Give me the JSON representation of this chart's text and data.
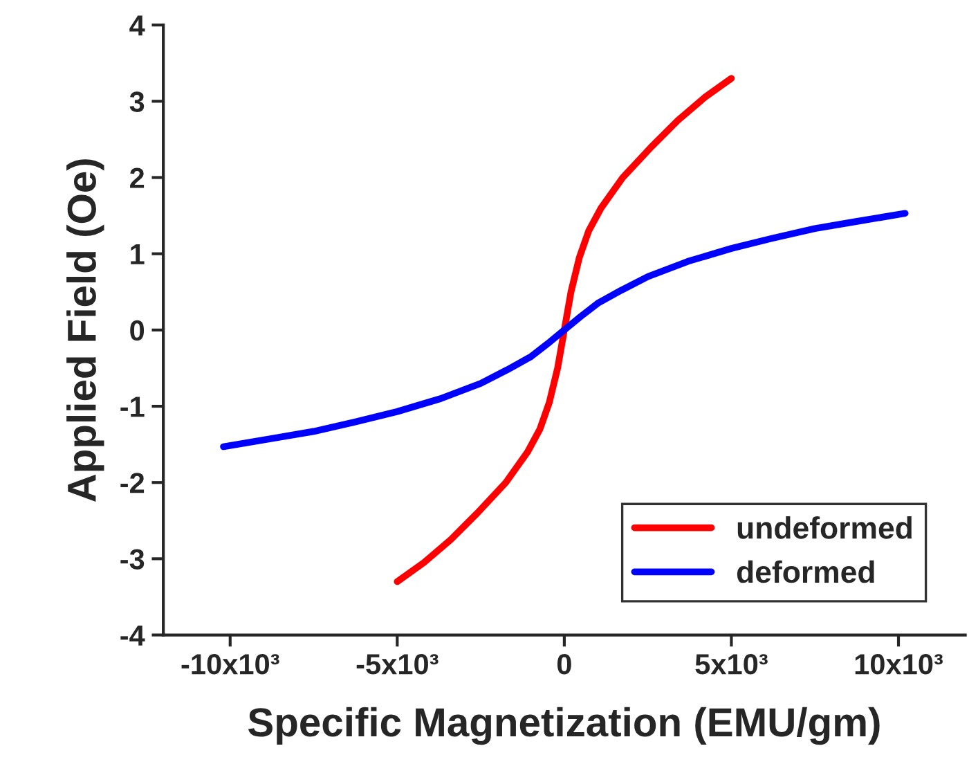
{
  "chart_data": {
    "type": "line",
    "xlabel": "Specific Magnetization (EMU/gm)",
    "ylabel": "Applied Field (Oe)",
    "xlim": [
      -12000,
      12000
    ],
    "ylim": [
      -4,
      4
    ],
    "xticks": [
      {
        "value": -10000,
        "label": "-10x10³"
      },
      {
        "value": -5000,
        "label": "-5x10³"
      },
      0,
      {
        "value": 5000,
        "label": "5x10³"
      },
      {
        "value": 10000,
        "label": "10x10³"
      }
    ],
    "yticks": [
      -4,
      -3,
      -2,
      -1,
      0,
      1,
      2,
      3,
      4
    ],
    "grid": false,
    "legend": "bottom right",
    "marker": "none",
    "line_style": "solid",
    "series": [
      {
        "name": "undeformed",
        "color": "#ff0000",
        "x": [
          -5000,
          -4200,
          -3400,
          -2600,
          -1750,
          -1100,
          -730,
          -450,
          -200,
          -80,
          0,
          80,
          200,
          450,
          730,
          1100,
          1750,
          2600,
          3400,
          4200,
          5000
        ],
        "values": [
          -3.3,
          -3.05,
          -2.75,
          -2.4,
          -2.0,
          -1.6,
          -1.3,
          -0.95,
          -0.5,
          -0.2,
          0,
          0.2,
          0.5,
          0.95,
          1.3,
          1.6,
          2.0,
          2.4,
          2.75,
          3.05,
          3.3
        ]
      },
      {
        "name": "deformed",
        "color": "#0000ff",
        "x": [
          -10200,
          -8700,
          -7500,
          -6200,
          -5000,
          -3700,
          -2500,
          -1700,
          -1000,
          -500,
          0,
          500,
          1000,
          1700,
          2500,
          3700,
          5000,
          6200,
          7500,
          8700,
          10200
        ],
        "values": [
          -1.53,
          -1.42,
          -1.33,
          -1.2,
          -1.07,
          -0.9,
          -0.7,
          -0.52,
          -0.35,
          -0.18,
          0,
          0.18,
          0.35,
          0.52,
          0.7,
          0.9,
          1.07,
          1.2,
          1.33,
          1.42,
          1.53
        ]
      }
    ]
  }
}
